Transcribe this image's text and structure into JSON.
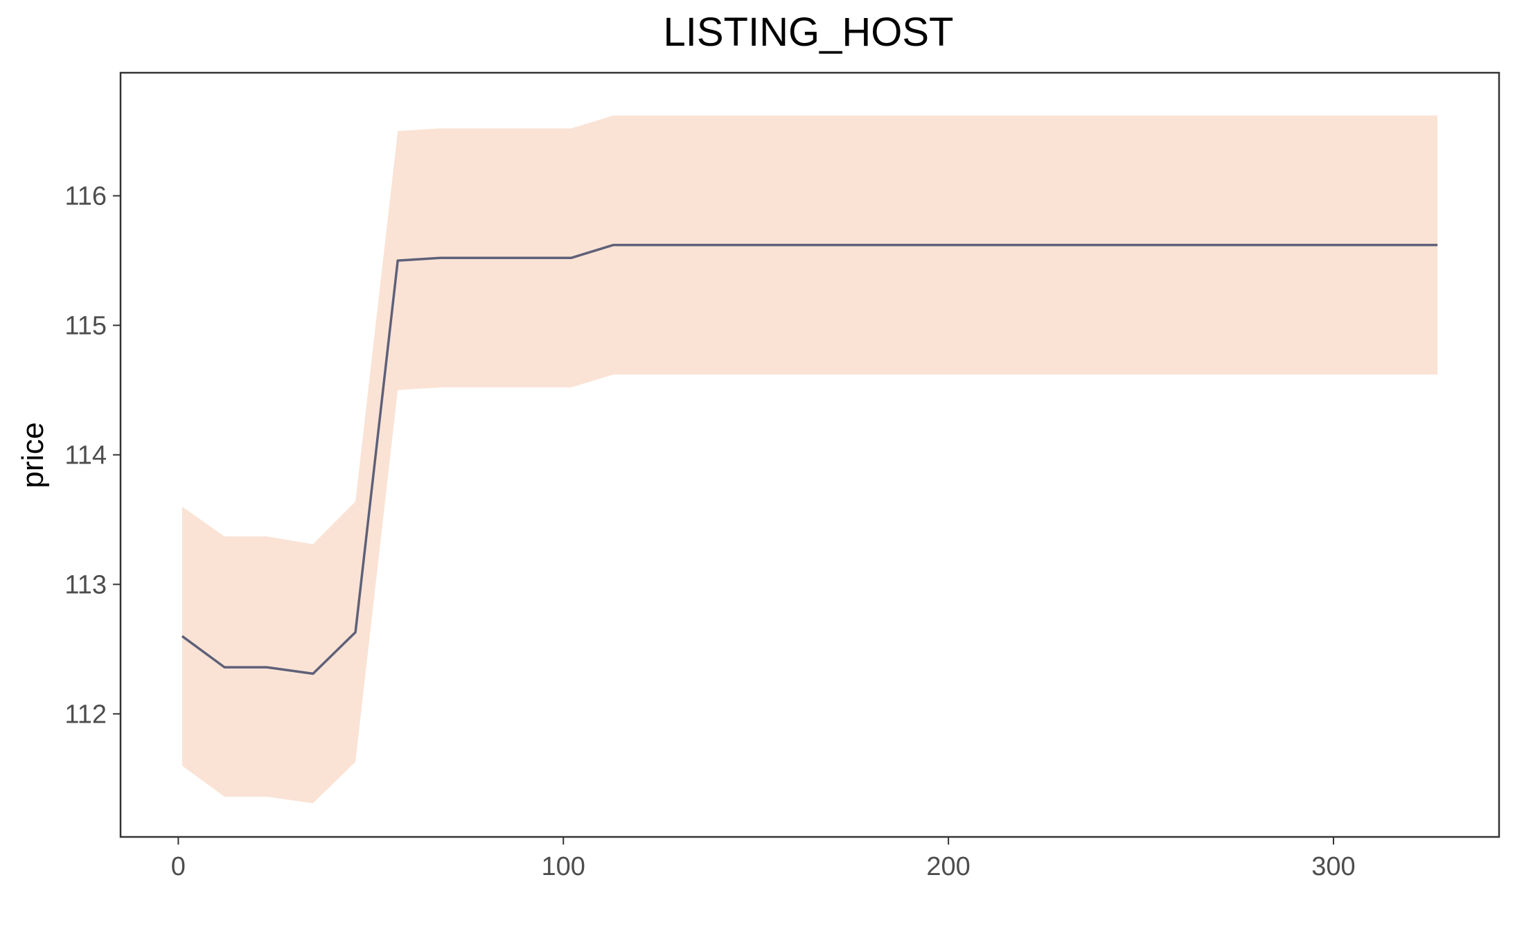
{
  "chart_data": {
    "type": "line",
    "title": "LISTING_HOST",
    "xlabel": "",
    "ylabel": "price",
    "xlim": [
      -15,
      343
    ],
    "ylim": [
      111.05,
      116.95
    ],
    "xticks": [
      0,
      100,
      200,
      300
    ],
    "xtick_labels": [
      "0",
      "100",
      "200",
      "300"
    ],
    "yticks": [
      112,
      113,
      114,
      115,
      116
    ],
    "ytick_labels": [
      "112",
      "113",
      "114",
      "115",
      "116"
    ],
    "grid": false,
    "series": [
      {
        "x": [
          1,
          12,
          23,
          35,
          46,
          57,
          68,
          102,
          113,
          327
        ],
        "y": [
          112.6,
          112.36,
          112.36,
          112.31,
          112.63,
          115.5,
          115.52,
          115.52,
          115.62,
          115.62
        ],
        "lower": [
          111.6,
          111.36,
          111.36,
          111.31,
          111.63,
          114.5,
          114.52,
          114.52,
          114.62,
          114.62
        ],
        "upper": [
          113.6,
          113.37,
          113.37,
          113.31,
          113.64,
          116.5,
          116.52,
          116.52,
          116.62,
          116.62
        ]
      }
    ],
    "colors": {
      "line": "#5e6078",
      "band": "#fae3d5",
      "panel_border": "#333333"
    }
  }
}
